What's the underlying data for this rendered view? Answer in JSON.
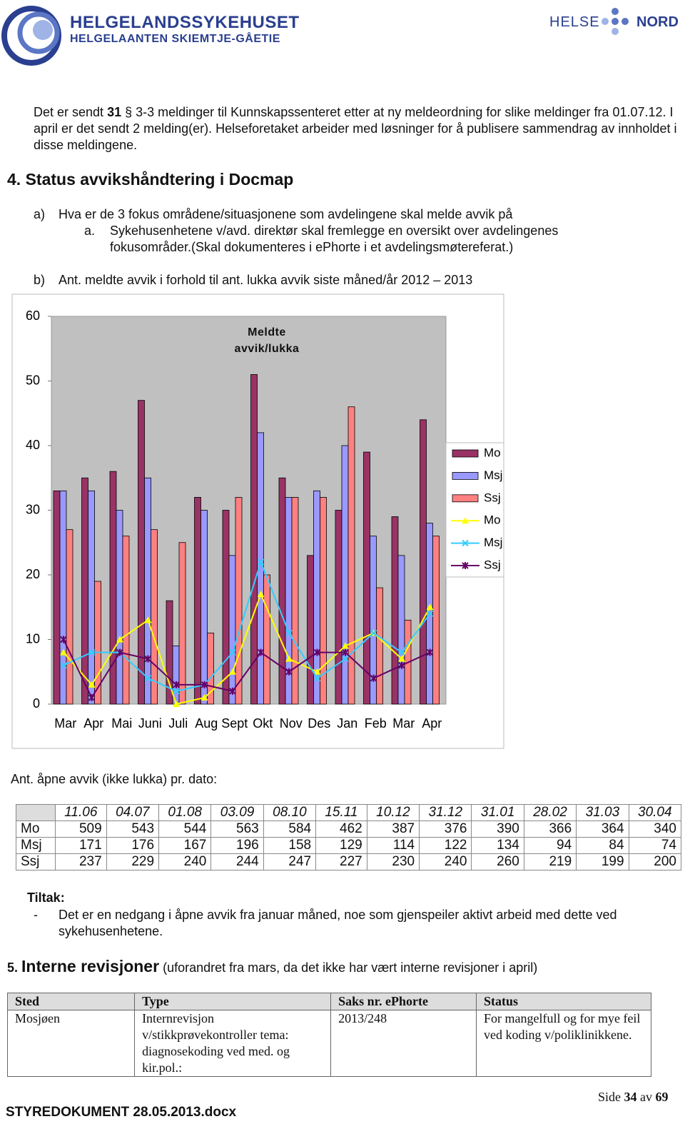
{
  "header": {
    "org": "HELGELANDSSYKEHUSET",
    "org_sami": "HELGELAANTEN SKIEMTJE-GÅETIE",
    "helse": "HELSE",
    "nord": "NORD"
  },
  "intro": [
    "Det er sendt ",
    "31",
    " § 3-3 meldinger til Kunnskapssenteret etter at ny meldeordning for slike meldinger fra 01.07.12. I april er det sendt 2 melding(er). Helseforetaket arbeider med løsninger for å publisere sammendrag av innholdet i disse meldingene."
  ],
  "section4": {
    "number": "4.",
    "title": "Status avvikshåndtering i Docmap",
    "a_marker": "a)",
    "a_text": "Hva er de 3 fokus områdene/situasjonene som avdelingene skal melde avvik på",
    "a1_marker": "a.",
    "a1_text": "Sykehusenhetene v/avd. direktør skal fremlegge en oversikt over avdelingenes fokusområder.(Skal dokumenteres i ePhorte i et avdelingsmøtereferat.)",
    "b_marker": "b)",
    "b_text": "Ant. meldte avvik i forhold til ant. lukka avvik siste måned/år 2012 – 2013"
  },
  "chart_data": {
    "type": "bar_line",
    "title": "Meldte avvik/lukka",
    "categories": [
      "Mar",
      "Apr",
      "Mai",
      "Juni",
      "Juli",
      "Aug",
      "Sept",
      "Okt",
      "Nov",
      "Des",
      "Jan",
      "Feb",
      "Mar",
      "Apr"
    ],
    "ylim": [
      0,
      60
    ],
    "yticks": [
      0,
      10,
      20,
      30,
      40,
      50,
      60
    ],
    "grid": false,
    "legend": "right",
    "series": [
      {
        "name": "Mo",
        "kind": "bar",
        "color": "#993366",
        "values": [
          33,
          35,
          36,
          47,
          16,
          32,
          30,
          51,
          35,
          23,
          30,
          39,
          29,
          44
        ]
      },
      {
        "name": "Msj",
        "kind": "bar",
        "color": "#9999ff",
        "values": [
          33,
          33,
          30,
          35,
          9,
          30,
          23,
          42,
          32,
          33,
          40,
          26,
          23,
          28
        ]
      },
      {
        "name": "Ssj",
        "kind": "bar",
        "color": "#ff8080",
        "values": [
          27,
          19,
          26,
          27,
          25,
          11,
          32,
          20,
          32,
          32,
          46,
          18,
          13,
          26
        ]
      },
      {
        "name": "Mo",
        "kind": "line",
        "marker": "triangle",
        "color": "#ffff00",
        "values": [
          8,
          3,
          10,
          13,
          0,
          1,
          5,
          17,
          7,
          5,
          9,
          11,
          7,
          15
        ]
      },
      {
        "name": "Msj",
        "kind": "line",
        "marker": "x",
        "color": "#33ccff",
        "values": [
          6,
          8,
          8,
          4,
          2,
          3,
          8,
          22,
          11,
          4,
          7,
          11,
          8,
          14
        ]
      },
      {
        "name": "Ssj",
        "kind": "line",
        "marker": "star",
        "color": "#660066",
        "values": [
          10,
          1,
          8,
          7,
          3,
          3,
          2,
          8,
          5,
          8,
          8,
          4,
          6,
          8
        ]
      }
    ]
  },
  "open_table": {
    "caption": "Ant. åpne avvik (ikke lukka) pr. dato:",
    "header": [
      "11.06",
      "04.07",
      "01.08",
      "03.09",
      "08.10",
      "15.11",
      "10.12",
      "31.12",
      "31.01",
      "28.02",
      "31.03",
      "30.04"
    ],
    "rows": [
      [
        "Mo",
        509,
        543,
        544,
        563,
        584,
        462,
        387,
        376,
        390,
        366,
        364,
        340
      ],
      [
        "Msj",
        171,
        176,
        167,
        196,
        158,
        129,
        114,
        122,
        134,
        94,
        84,
        74
      ],
      [
        "Ssj",
        237,
        229,
        240,
        244,
        247,
        227,
        230,
        240,
        260,
        219,
        199,
        200
      ]
    ]
  },
  "tiltak": {
    "label": "Tiltak:",
    "marker": "-",
    "text": "Det er en nedgang i åpne avvik fra januar måned, noe som gjenspeiler aktivt arbeid med dette ved sykehusenhetene."
  },
  "section5": {
    "number": "5.",
    "title": "Interne revisjoner",
    "note": "(uforandret fra mars, da det ikke har vært interne revisjoner i april)"
  },
  "revision_table": {
    "header": [
      "Sted",
      "Type",
      "Saks nr. ePhorte",
      "Status"
    ],
    "rows": [
      [
        "Mosjøen",
        "Internrevisjon v/stikkprøvekontroller tema: diagnosekoding ved med. og kir.pol.:",
        "2013/248",
        "For mangelfull og for mye feil ved koding v/poliklinikkene."
      ]
    ]
  },
  "footer": {
    "page": [
      "Side ",
      "34",
      " av ",
      "69"
    ],
    "doc": "STYREDOKUMENT 28.05.2013.docx"
  }
}
